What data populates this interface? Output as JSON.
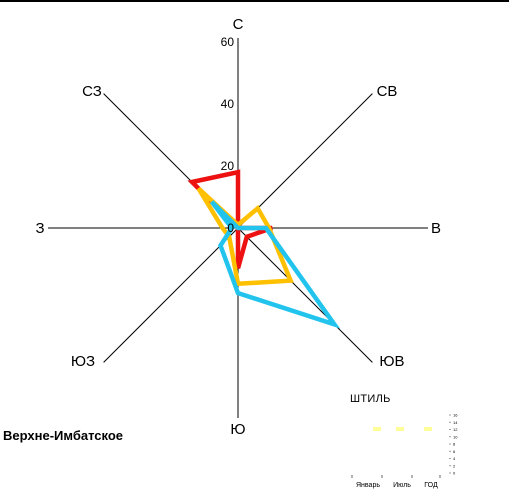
{
  "chart_data": [
    {
      "type": "radar",
      "title": "",
      "directions": [
        "С",
        "СВ",
        "В",
        "ЮВ",
        "Ю",
        "ЮЗ",
        "З",
        "СЗ"
      ],
      "radial_ticks": [
        "0",
        "20",
        "40",
        "60"
      ],
      "rlim": [
        0,
        60
      ],
      "series": [
        {
          "color": "#ee1111",
          "values": [
            18,
            0,
            11,
            4,
            13,
            0,
            0,
            21
          ]
        },
        {
          "color": "#ffc000",
          "values": [
            1,
            9,
            10,
            24,
            18,
            4,
            5,
            18
          ]
        },
        {
          "color": "#22c4ee",
          "values": [
            0,
            0,
            9,
            44,
            21,
            8,
            2,
            12
          ]
        }
      ],
      "grid": false
    },
    {
      "type": "bar",
      "title": "ШТИЛЬ",
      "categories": [
        "Январь",
        "Июль",
        "ГОД"
      ],
      "ytick_labels": [
        "0",
        "2",
        "4",
        "6",
        "8",
        "10",
        "12",
        "14",
        "16"
      ],
      "ylim": [
        0,
        16
      ],
      "colors": [
        "#ffff99",
        "#ffff99",
        "#ffff99"
      ]
    }
  ],
  "station": {
    "name": "Верхне-Имбатское"
  }
}
